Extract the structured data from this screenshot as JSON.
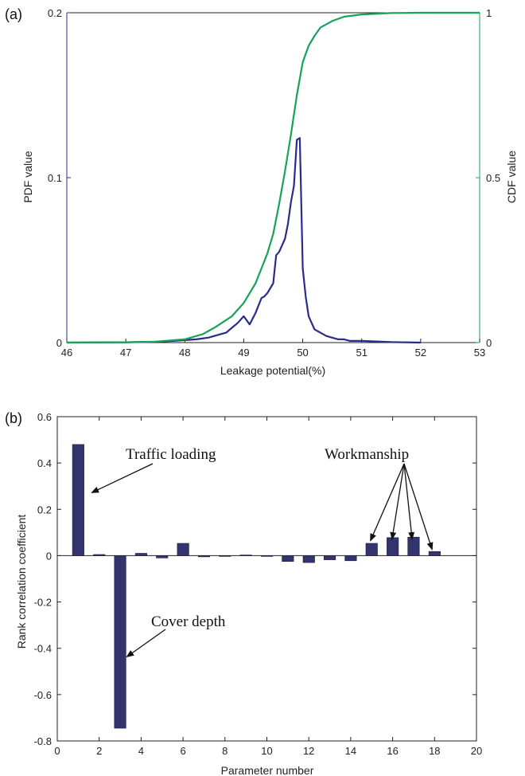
{
  "panel_a": {
    "label": "(a)",
    "xlabel": "Leakage potential(%)",
    "ylabel_left": "PDF value",
    "ylabel_right": "CDF value",
    "xticks": [
      "46",
      "47",
      "48",
      "49",
      "50",
      "51",
      "52",
      "53"
    ],
    "yticks_left": [
      "0",
      "0.1",
      "0.2"
    ],
    "yticks_right": [
      "0",
      "0.5",
      "1"
    ]
  },
  "panel_b": {
    "label": "(b)",
    "xlabel": "Parameter number",
    "ylabel": "Rank correlation coefficient",
    "xticks": [
      "0",
      "2",
      "4",
      "6",
      "8",
      "10",
      "12",
      "14",
      "16",
      "18",
      "20"
    ],
    "yticks": [
      "-0.8",
      "-0.6",
      "-0.4",
      "-0.2",
      "0",
      "0.2",
      "0.4",
      "0.6"
    ],
    "annotations": {
      "traffic": "Traffic loading",
      "cover": "Cover depth",
      "workmanship": "Workmanship"
    }
  },
  "colors": {
    "pdf": "#2b2b8c",
    "cdf": "#17a35a",
    "bar": "#33336e",
    "axis": "#222222"
  },
  "chart_data": [
    {
      "type": "line",
      "xlim": [
        46,
        53
      ],
      "ylim_left": [
        0,
        0.2
      ],
      "ylim_right": [
        0,
        1
      ],
      "series": [
        {
          "name": "PDF value",
          "axis": "left",
          "x": [
            46,
            47,
            47.5,
            47.8,
            48.0,
            48.2,
            48.4,
            48.5,
            48.6,
            48.7,
            48.8,
            48.9,
            49.0,
            49.1,
            49.2,
            49.3,
            49.35,
            49.4,
            49.5,
            49.55,
            49.6,
            49.7,
            49.75,
            49.8,
            49.85,
            49.9,
            49.95,
            50.0,
            50.05,
            50.1,
            50.15,
            50.2,
            50.3,
            50.4,
            50.5,
            50.6,
            50.7,
            50.8,
            51.0,
            51.5,
            52
          ],
          "y": [
            0,
            0.0002,
            0.0005,
            0.001,
            0.0015,
            0.002,
            0.003,
            0.004,
            0.005,
            0.006,
            0.009,
            0.012,
            0.016,
            0.011,
            0.018,
            0.027,
            0.028,
            0.03,
            0.036,
            0.053,
            0.055,
            0.063,
            0.072,
            0.085,
            0.095,
            0.123,
            0.124,
            0.045,
            0.028,
            0.016,
            0.012,
            0.008,
            0.006,
            0.004,
            0.003,
            0.002,
            0.002,
            0.001,
            0.001,
            0.0003,
            0
          ]
        },
        {
          "name": "CDF value",
          "axis": "right",
          "x": [
            46,
            47,
            47.5,
            48.0,
            48.3,
            48.5,
            48.8,
            49.0,
            49.2,
            49.4,
            49.5,
            49.6,
            49.7,
            49.8,
            49.9,
            49.95,
            50.0,
            50.1,
            50.2,
            50.3,
            50.5,
            50.7,
            51.0,
            51.5,
            52,
            53
          ],
          "y": [
            0,
            0.001,
            0.003,
            0.01,
            0.025,
            0.045,
            0.08,
            0.12,
            0.18,
            0.27,
            0.33,
            0.42,
            0.52,
            0.63,
            0.75,
            0.8,
            0.85,
            0.9,
            0.93,
            0.955,
            0.975,
            0.988,
            0.995,
            0.999,
            1.0,
            1.0
          ]
        }
      ]
    },
    {
      "type": "bar",
      "xlim": [
        0,
        20
      ],
      "ylim": [
        -0.8,
        0.6
      ],
      "categories": [
        1,
        2,
        3,
        4,
        5,
        6,
        7,
        8,
        9,
        10,
        11,
        12,
        13,
        14,
        15,
        16,
        17,
        18
      ],
      "values": [
        0.48,
        0.005,
        -0.745,
        0.01,
        -0.01,
        0.053,
        -0.005,
        -0.003,
        0.003,
        0.0,
        -0.025,
        -0.03,
        -0.018,
        -0.022,
        0.053,
        0.078,
        0.08,
        0.018
      ]
    }
  ]
}
